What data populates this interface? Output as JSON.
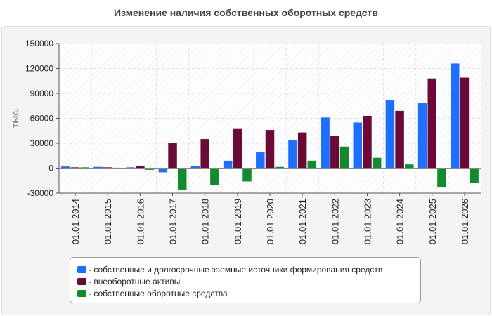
{
  "chart_data": {
    "type": "bar",
    "title": "Изменение наличия собственных оборотных средств",
    "ylabel": "тыс.",
    "xlabel": "",
    "categories": [
      "01.01.2014",
      "01.01.2015",
      "01.01.2016",
      "01.01.2017",
      "01.01.2018",
      "01.01.2019",
      "01.01.2020",
      "01.01.2021",
      "01.01.2022",
      "01.01.2023",
      "01.01.2024",
      "01.01.2025",
      "01.01.2026"
    ],
    "ylim": [
      -30000,
      150000
    ],
    "yticks": [
      "150000",
      "120000",
      "90000",
      "60000",
      "30000",
      "0",
      "-30000"
    ],
    "grid": true,
    "legend_position": "bottom",
    "series": [
      {
        "name": "- собственные и долгосрочные заемные источники формирования средств",
        "color": "#1f6fff",
        "values": [
          2000,
          1500,
          1000,
          -5000,
          3000,
          9000,
          19000,
          34000,
          61000,
          55000,
          82000,
          79000,
          126000
        ]
      },
      {
        "name": "- внеоборотные активы",
        "color": "#6b0a36",
        "values": [
          1000,
          1000,
          3000,
          30000,
          35000,
          48000,
          46000,
          43000,
          39000,
          63000,
          69000,
          108000,
          109000
        ]
      },
      {
        "name": "- собственные оборотные средства",
        "color": "#138a2e",
        "values": [
          1000,
          500,
          -2000,
          -26000,
          -20000,
          -16000,
          1500,
          9000,
          26000,
          12500,
          4500,
          -23000,
          -18000
        ]
      }
    ]
  }
}
